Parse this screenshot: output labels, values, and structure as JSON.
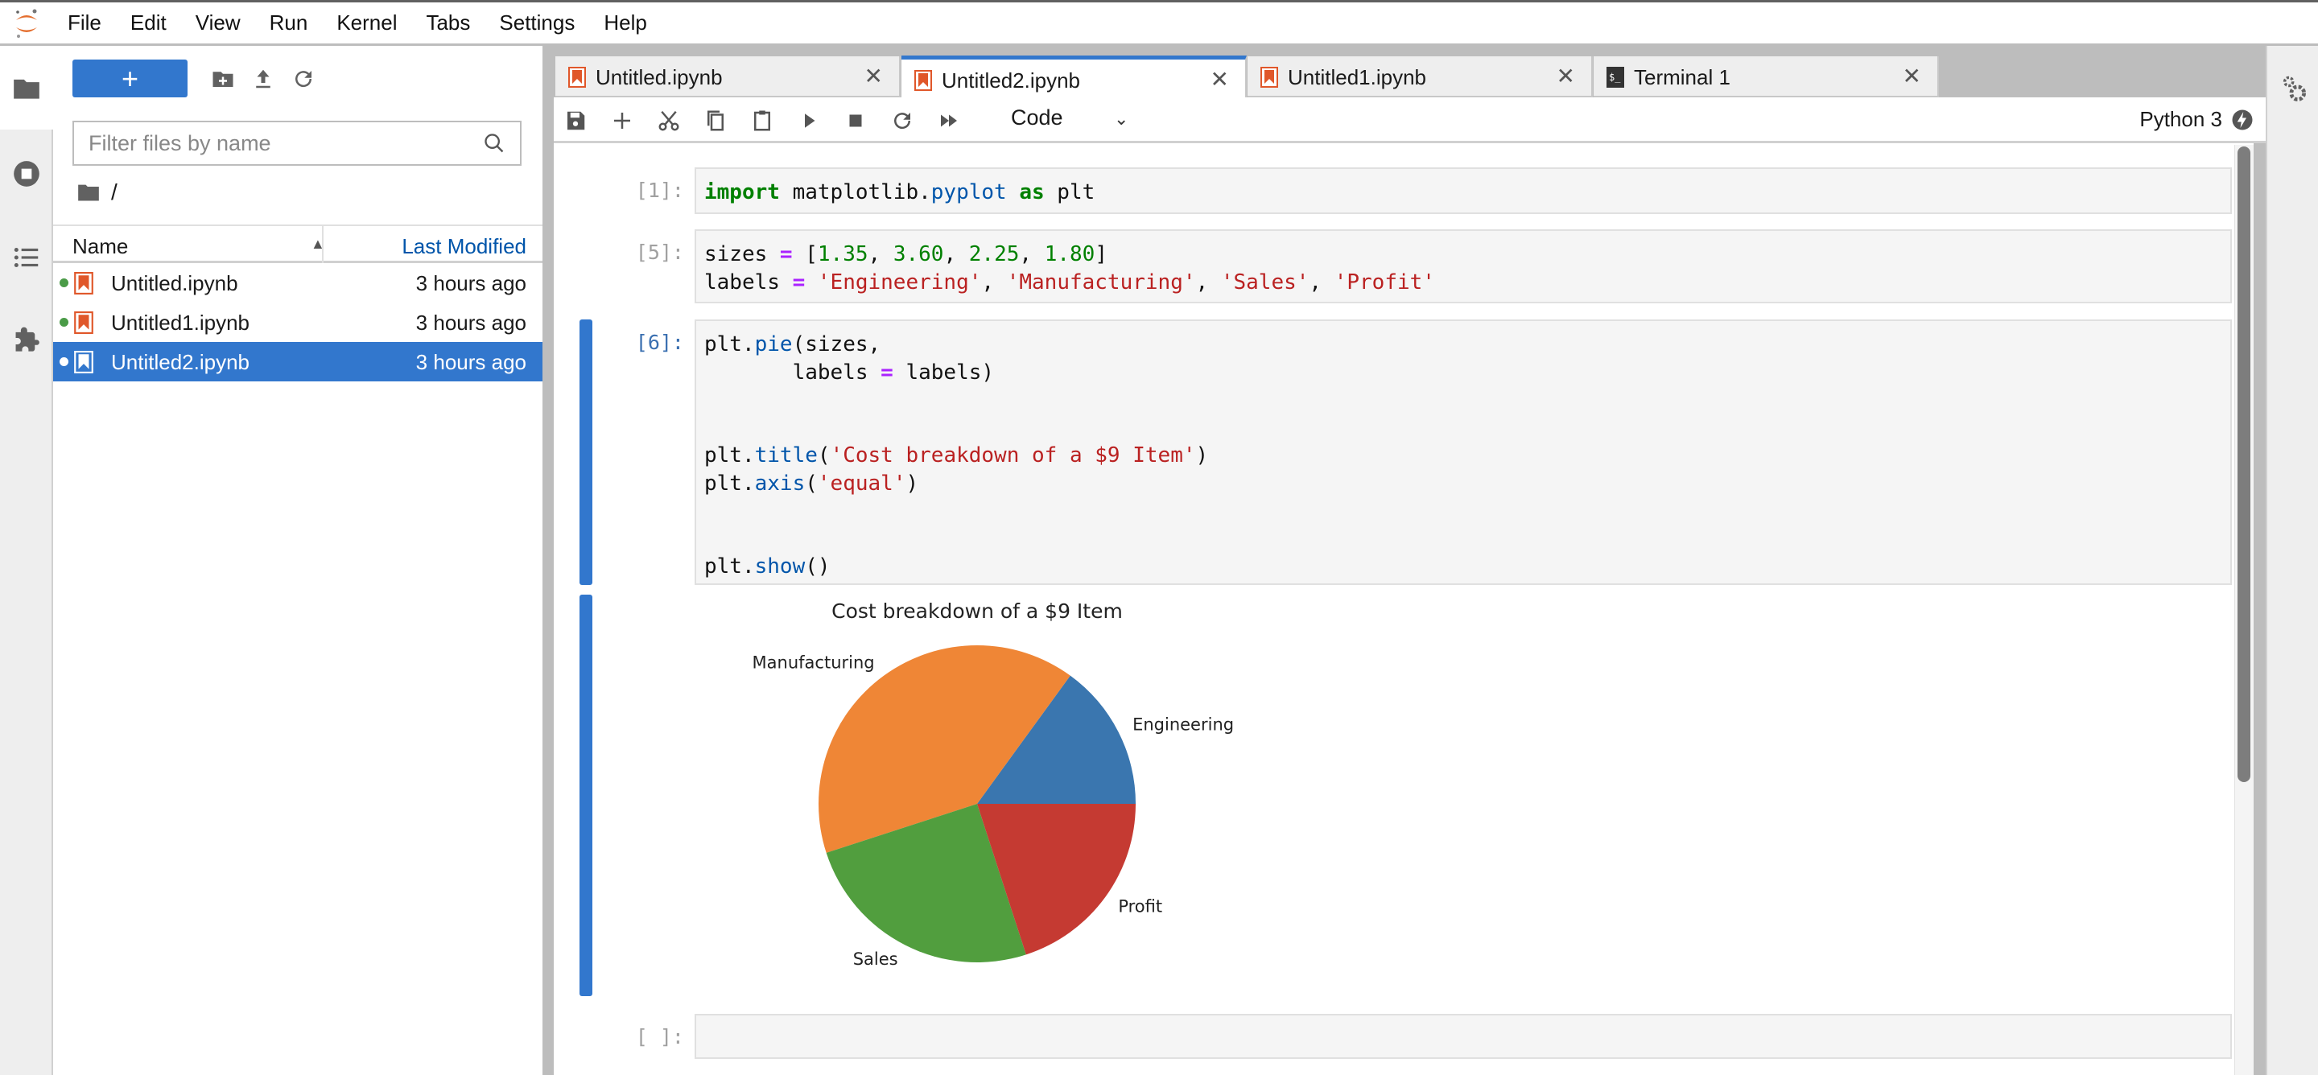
{
  "menu": [
    "File",
    "Edit",
    "View",
    "Run",
    "Kernel",
    "Tabs",
    "Settings",
    "Help"
  ],
  "filebrowser": {
    "new_label": "+",
    "filter_placeholder": "Filter files by name",
    "path": "/",
    "columns": {
      "name": "Name",
      "modified": "Last Modified"
    },
    "files": [
      {
        "name": "Untitled.ipynb",
        "modified": "3 hours ago",
        "running": true,
        "selected": false
      },
      {
        "name": "Untitled1.ipynb",
        "modified": "3 hours ago",
        "running": true,
        "selected": false
      },
      {
        "name": "Untitled2.ipynb",
        "modified": "3 hours ago",
        "running": true,
        "selected": true
      }
    ]
  },
  "tabs": [
    {
      "label": "Untitled.ipynb",
      "icon": "notebook-icon",
      "active": false
    },
    {
      "label": "Untitled2.ipynb",
      "icon": "notebook-icon",
      "active": true
    },
    {
      "label": "Untitled1.ipynb",
      "icon": "notebook-icon",
      "active": false
    },
    {
      "label": "Terminal 1",
      "icon": "terminal-icon",
      "active": false
    }
  ],
  "toolbar": {
    "cell_type": "Code",
    "kernel": "Python 3"
  },
  "cells": [
    {
      "prompt": "[1]:",
      "lines": [
        [
          {
            "t": "import",
            "c": "kw"
          },
          {
            "t": " matplotlib.",
            "c": "txt"
          },
          {
            "t": "pyplot",
            "c": "mod"
          },
          {
            "t": " ",
            "c": "txt"
          },
          {
            "t": "as",
            "c": "kw"
          },
          {
            "t": " plt",
            "c": "txt"
          }
        ]
      ]
    },
    {
      "prompt": "[5]:",
      "lines": [
        [
          {
            "t": "sizes ",
            "c": "txt"
          },
          {
            "t": "=",
            "c": "op"
          },
          {
            "t": " [",
            "c": "txt"
          },
          {
            "t": "1.35",
            "c": "num"
          },
          {
            "t": ", ",
            "c": "txt"
          },
          {
            "t": "3.60",
            "c": "num"
          },
          {
            "t": ", ",
            "c": "txt"
          },
          {
            "t": "2.25",
            "c": "num"
          },
          {
            "t": ", ",
            "c": "txt"
          },
          {
            "t": "1.80",
            "c": "num"
          },
          {
            "t": "]",
            "c": "txt"
          }
        ],
        [
          {
            "t": "labels ",
            "c": "txt"
          },
          {
            "t": "=",
            "c": "op"
          },
          {
            "t": " ",
            "c": "txt"
          },
          {
            "t": "'Engineering'",
            "c": "str"
          },
          {
            "t": ", ",
            "c": "txt"
          },
          {
            "t": "'Manufacturing'",
            "c": "str"
          },
          {
            "t": ", ",
            "c": "txt"
          },
          {
            "t": "'Sales'",
            "c": "str"
          },
          {
            "t": ", ",
            "c": "txt"
          },
          {
            "t": "'Profit'",
            "c": "str"
          }
        ]
      ]
    },
    {
      "prompt": "[6]:",
      "lines": [
        [
          {
            "t": "plt.",
            "c": "txt"
          },
          {
            "t": "pie",
            "c": "mod"
          },
          {
            "t": "(sizes,",
            "c": "txt"
          }
        ],
        [
          {
            "t": "       labels ",
            "c": "txt"
          },
          {
            "t": "=",
            "c": "op"
          },
          {
            "t": " labels)",
            "c": "txt"
          }
        ],
        [],
        [],
        [
          {
            "t": "plt.",
            "c": "txt"
          },
          {
            "t": "title",
            "c": "mod"
          },
          {
            "t": "(",
            "c": "txt"
          },
          {
            "t": "'Cost breakdown of a $9 Item'",
            "c": "str"
          },
          {
            "t": ")",
            "c": "txt"
          }
        ],
        [
          {
            "t": "plt.",
            "c": "txt"
          },
          {
            "t": "axis",
            "c": "mod"
          },
          {
            "t": "(",
            "c": "txt"
          },
          {
            "t": "'equal'",
            "c": "str"
          },
          {
            "t": ")",
            "c": "txt"
          }
        ],
        [],
        [],
        [
          {
            "t": "plt.",
            "c": "txt"
          },
          {
            "t": "show",
            "c": "mod"
          },
          {
            "t": "()",
            "c": "txt"
          }
        ]
      ]
    },
    {
      "prompt": "[ ]:",
      "lines": [
        []
      ]
    }
  ],
  "chart_data": {
    "type": "pie",
    "title": "Cost breakdown of a $9 Item",
    "categories": [
      "Engineering",
      "Manufacturing",
      "Sales",
      "Profit"
    ],
    "values": [
      1.35,
      3.6,
      2.25,
      1.8
    ],
    "colors": [
      "#3a76af",
      "#ef8636",
      "#519e3e",
      "#c53a32"
    ],
    "start_angle_deg": 0,
    "direction": "counterclockwise"
  },
  "colors": {
    "accent": "#3277cd",
    "notebook_icon": "#e0572a",
    "running_dot": "#4a9b47"
  }
}
